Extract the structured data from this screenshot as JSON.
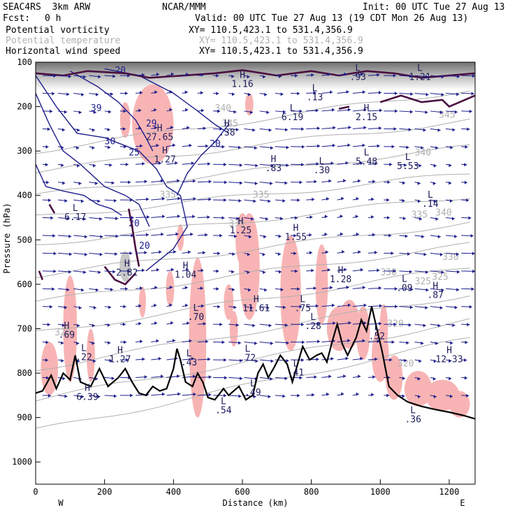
{
  "header": {
    "model": "SEAC4RS  3km ARW",
    "org": "NCAR/MMM",
    "init": "Init: 00 UTC Tue 27 Aug 13",
    "fcst_label": "Fcst:",
    "fcst_value": "0 h",
    "valid": "Valid: 00 UTC Tue 27 Aug 13 (19 CDT Mon 26 Aug 13)",
    "fields": [
      {
        "name": "Potential vorticity",
        "xy": "XY= 110.5,423.1 to 531.4,356.9"
      },
      {
        "name": "Potential temperature",
        "xy": "XY= 110.5,423.1 to 531.4,356.9"
      },
      {
        "name": "Horizontal wind speed",
        "xy": "XY= 110.5,423.1 to 531.4,356.9"
      }
    ]
  },
  "colors": {
    "pv": "#4a1040",
    "theta": "#b0b0b0",
    "wind": "#1c1c8c",
    "shade_pink": "#f8b4b4",
    "terrain": "#000000"
  },
  "chart_data": {
    "type": "cross-section",
    "xlabel": "Distance (km)",
    "ylabel": "Pressure (hPa)",
    "xlim": [
      0,
      1275
    ],
    "ylim": [
      1050,
      100
    ],
    "x_ticks": [
      0,
      200,
      400,
      600,
      800,
      1000,
      1200
    ],
    "y_ticks": [
      100,
      200,
      300,
      400,
      500,
      600,
      700,
      800,
      900,
      1000
    ],
    "end_labels": {
      "left": "W",
      "right": "E"
    },
    "terrain": [
      [
        0,
        845
      ],
      [
        20,
        840
      ],
      [
        45,
        805
      ],
      [
        60,
        835
      ],
      [
        80,
        800
      ],
      [
        100,
        815
      ],
      [
        115,
        760
      ],
      [
        130,
        820
      ],
      [
        160,
        830
      ],
      [
        185,
        790
      ],
      [
        210,
        830
      ],
      [
        240,
        810
      ],
      [
        260,
        790
      ],
      [
        280,
        820
      ],
      [
        300,
        845
      ],
      [
        320,
        850
      ],
      [
        340,
        830
      ],
      [
        360,
        840
      ],
      [
        380,
        835
      ],
      [
        400,
        790
      ],
      [
        410,
        745
      ],
      [
        420,
        770
      ],
      [
        435,
        820
      ],
      [
        455,
        830
      ],
      [
        470,
        800
      ],
      [
        485,
        820
      ],
      [
        500,
        855
      ],
      [
        520,
        860
      ],
      [
        545,
        835
      ],
      [
        560,
        850
      ],
      [
        590,
        830
      ],
      [
        610,
        860
      ],
      [
        630,
        850
      ],
      [
        645,
        800
      ],
      [
        660,
        780
      ],
      [
        675,
        810
      ],
      [
        690,
        790
      ],
      [
        710,
        760
      ],
      [
        730,
        780
      ],
      [
        745,
        820
      ],
      [
        760,
        780
      ],
      [
        775,
        740
      ],
      [
        795,
        770
      ],
      [
        815,
        760
      ],
      [
        830,
        755
      ],
      [
        845,
        775
      ],
      [
        860,
        730
      ],
      [
        875,
        690
      ],
      [
        890,
        735
      ],
      [
        905,
        760
      ],
      [
        930,
        720
      ],
      [
        945,
        680
      ],
      [
        960,
        705
      ],
      [
        975,
        650
      ],
      [
        990,
        700
      ],
      [
        1005,
        750
      ],
      [
        1025,
        830
      ],
      [
        1050,
        850
      ],
      [
        1080,
        865
      ],
      [
        1120,
        875
      ],
      [
        1160,
        882
      ],
      [
        1200,
        888
      ],
      [
        1240,
        895
      ],
      [
        1275,
        903
      ]
    ],
    "series": [
      {
        "name": "Potential temperature",
        "contour_labels": [
          "320",
          "320",
          "320",
          "325",
          "325",
          "330",
          "330",
          "335",
          "335",
          "335",
          "335",
          "340",
          "340",
          "340",
          "345",
          "345"
        ]
      },
      {
        "name": "Potential vorticity",
        "contour_labels": []
      },
      {
        "name": "Horizontal wind speed",
        "contour_labels": [
          "20",
          "20",
          "20",
          "20",
          "25",
          "29",
          "30",
          "39"
        ]
      }
    ],
    "extrema": [
      {
        "t": "H",
        "v": "1.16",
        "x": 600,
        "p": 135
      },
      {
        "t": "L",
        "v": ".93",
        "x": 935,
        "p": 120
      },
      {
        "t": "L",
        "v": "1.21",
        "x": 1115,
        "p": 120
      },
      {
        "t": "L",
        "v": ".13",
        "x": 810,
        "p": 165
      },
      {
        "t": "L",
        "v": "6.19",
        "x": 745,
        "p": 210
      },
      {
        "t": "H",
        "v": "2.15",
        "x": 960,
        "p": 210
      },
      {
        "t": "H",
        "v": "27.65",
        "x": 360,
        "p": 255
      },
      {
        "t": "H",
        "v": "1.27",
        "x": 375,
        "p": 305
      },
      {
        "t": "H",
        "v": ".38",
        "x": 555,
        "p": 245
      },
      {
        "t": "H",
        "v": ".83",
        "x": 690,
        "p": 325
      },
      {
        "t": "L",
        "v": ".30",
        "x": 830,
        "p": 330
      },
      {
        "t": "L",
        "v": "5.48",
        "x": 960,
        "p": 310
      },
      {
        "t": "L",
        "v": "5.53",
        "x": 1080,
        "p": 320
      },
      {
        "t": "L",
        "v": ".14",
        "x": 1145,
        "p": 405
      },
      {
        "t": "L",
        "v": "6.17",
        "x": 115,
        "p": 435
      },
      {
        "t": "H",
        "v": "1.25",
        "x": 595,
        "p": 465
      },
      {
        "t": "H",
        "v": "1.55",
        "x": 755,
        "p": 480
      },
      {
        "t": "H",
        "v": "2.82",
        "x": 265,
        "p": 560
      },
      {
        "t": "H",
        "v": "1.04",
        "x": 435,
        "p": 565
      },
      {
        "t": "H",
        "v": "1.28",
        "x": 885,
        "p": 575
      },
      {
        "t": "L",
        "v": ".09",
        "x": 1070,
        "p": 595
      },
      {
        "t": "H",
        "v": ".87",
        "x": 1160,
        "p": 610
      },
      {
        "t": "L",
        "v": ".70",
        "x": 465,
        "p": 660
      },
      {
        "t": "H",
        "v": "11.61",
        "x": 640,
        "p": 640
      },
      {
        "t": "L",
        "v": ".75",
        "x": 775,
        "p": 640
      },
      {
        "t": "L",
        "v": ".28",
        "x": 805,
        "p": 680
      },
      {
        "t": "H",
        "v": ".69",
        "x": 90,
        "p": 700
      },
      {
        "t": "L",
        "v": ".22",
        "x": 140,
        "p": 750
      },
      {
        "t": "L",
        "v": ".72",
        "x": 615,
        "p": 752
      },
      {
        "t": "H",
        "v": "1.27",
        "x": 245,
        "p": 755
      },
      {
        "t": "L",
        "v": ".43",
        "x": 445,
        "p": 762
      },
      {
        "t": "L",
        "v": ".41",
        "x": 755,
        "p": 785
      },
      {
        "t": "L",
        "v": ".52",
        "x": 990,
        "p": 703
      },
      {
        "t": "H",
        "v": "12.33",
        "x": 1200,
        "p": 755
      },
      {
        "t": "L",
        "v": ".49",
        "x": 630,
        "p": 830
      },
      {
        "t": "H",
        "v": "6.39",
        "x": 150,
        "p": 840
      },
      {
        "t": "L",
        "v": ".54",
        "x": 545,
        "p": 870
      },
      {
        "t": "L",
        "v": ".36",
        "x": 1095,
        "p": 890
      }
    ]
  }
}
